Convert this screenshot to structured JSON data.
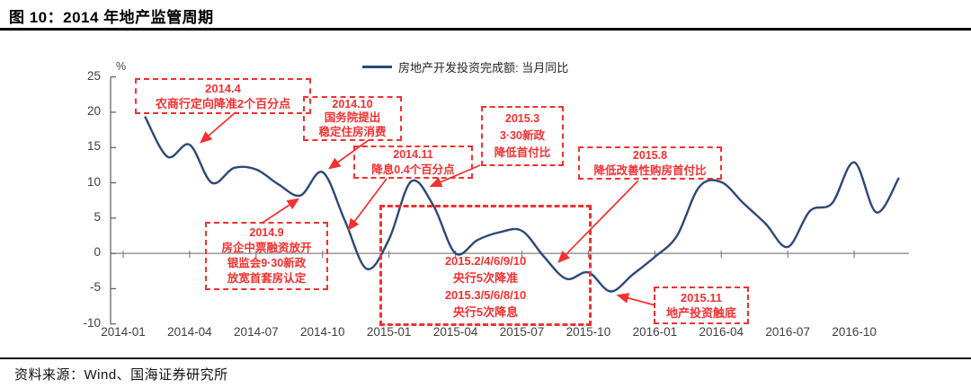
{
  "page": {
    "title": "图 10：2014 年地产监管周期",
    "source": "资料来源：Wind、国海证券研究所"
  },
  "colors": {
    "line": "#2b4879",
    "red": "#f53030",
    "axis": "#595959",
    "zero_line": "#808080",
    "tick_text": "#3f3f3f"
  },
  "chart_data": {
    "type": "line",
    "title": "2014 年地产监管周期",
    "xlabel": "",
    "ylabel": "%",
    "ylim": [
      -10,
      25
    ],
    "yticks": [
      25,
      20,
      15,
      10,
      5,
      0,
      -5,
      -10
    ],
    "xticks": [
      "2014-01",
      "2014-04",
      "2014-07",
      "2014-10",
      "2015-01",
      "2015-04",
      "2015-07",
      "2015-10",
      "2016-01",
      "2016-04",
      "2016-07",
      "2016-10"
    ],
    "x_range": [
      "2014-01",
      "2016-12"
    ],
    "grid": false,
    "legend_position": "top-center",
    "series": [
      {
        "name": "房地产开发投资完成额: 当月同比",
        "color": "#2b4879",
        "x": [
          "2014-02",
          "2014-03",
          "2014-04",
          "2014-05",
          "2014-06",
          "2014-07",
          "2014-08",
          "2014-09",
          "2014-10",
          "2014-11",
          "2014-12",
          "2015-01",
          "2015-02",
          "2015-03",
          "2015-04",
          "2015-05",
          "2015-06",
          "2015-07",
          "2015-08",
          "2015-09",
          "2015-10",
          "2015-11",
          "2015-12",
          "2016-01",
          "2016-02",
          "2016-03",
          "2016-04",
          "2016-05",
          "2016-06",
          "2016-07",
          "2016-08",
          "2016-09",
          "2016-10",
          "2016-11",
          "2016-12"
        ],
        "values": [
          19.3,
          13.7,
          15.4,
          10.0,
          12.1,
          11.9,
          9.8,
          8.2,
          11.5,
          4.7,
          -2.2,
          2.0,
          10.2,
          6.8,
          0.0,
          1.9,
          3.0,
          3.2,
          -0.5,
          -3.6,
          -2.7,
          -5.4,
          -3.0,
          -0.5,
          2.5,
          9.4,
          10.1,
          7.1,
          4.2,
          0.9,
          6.0,
          7.1,
          12.9,
          5.8,
          10.6
        ]
      }
    ],
    "annotations": {
      "box_2014_04": {
        "lines": [
          "2014.4",
          "农商行定向降准2个百分点"
        ]
      },
      "box_2014_10": {
        "lines": [
          "2014.10",
          "国务院提出",
          "稳定住房消费"
        ]
      },
      "box_2014_11": {
        "lines": [
          "2014.11",
          "降息0.4个百分点"
        ]
      },
      "box_2015_03": {
        "lines": [
          "2015.3",
          "3·30新政",
          "降低首付比"
        ]
      },
      "box_2015_08": {
        "lines": [
          "2015.8",
          "降低改善性购房首付比"
        ]
      },
      "box_2014_09": {
        "lines": [
          "2014.9",
          "房企中票融资放开",
          "银监会9·30新政",
          "放宽首套房认定"
        ]
      },
      "box_easing": {
        "lines": [
          "2015.2/4/6/9/10",
          "央行5次降准",
          "2015.3/5/6/8/10",
          "央行5次降息"
        ]
      },
      "box_2015_11": {
        "lines": [
          "2015.11",
          "地产投资触底"
        ]
      }
    }
  }
}
